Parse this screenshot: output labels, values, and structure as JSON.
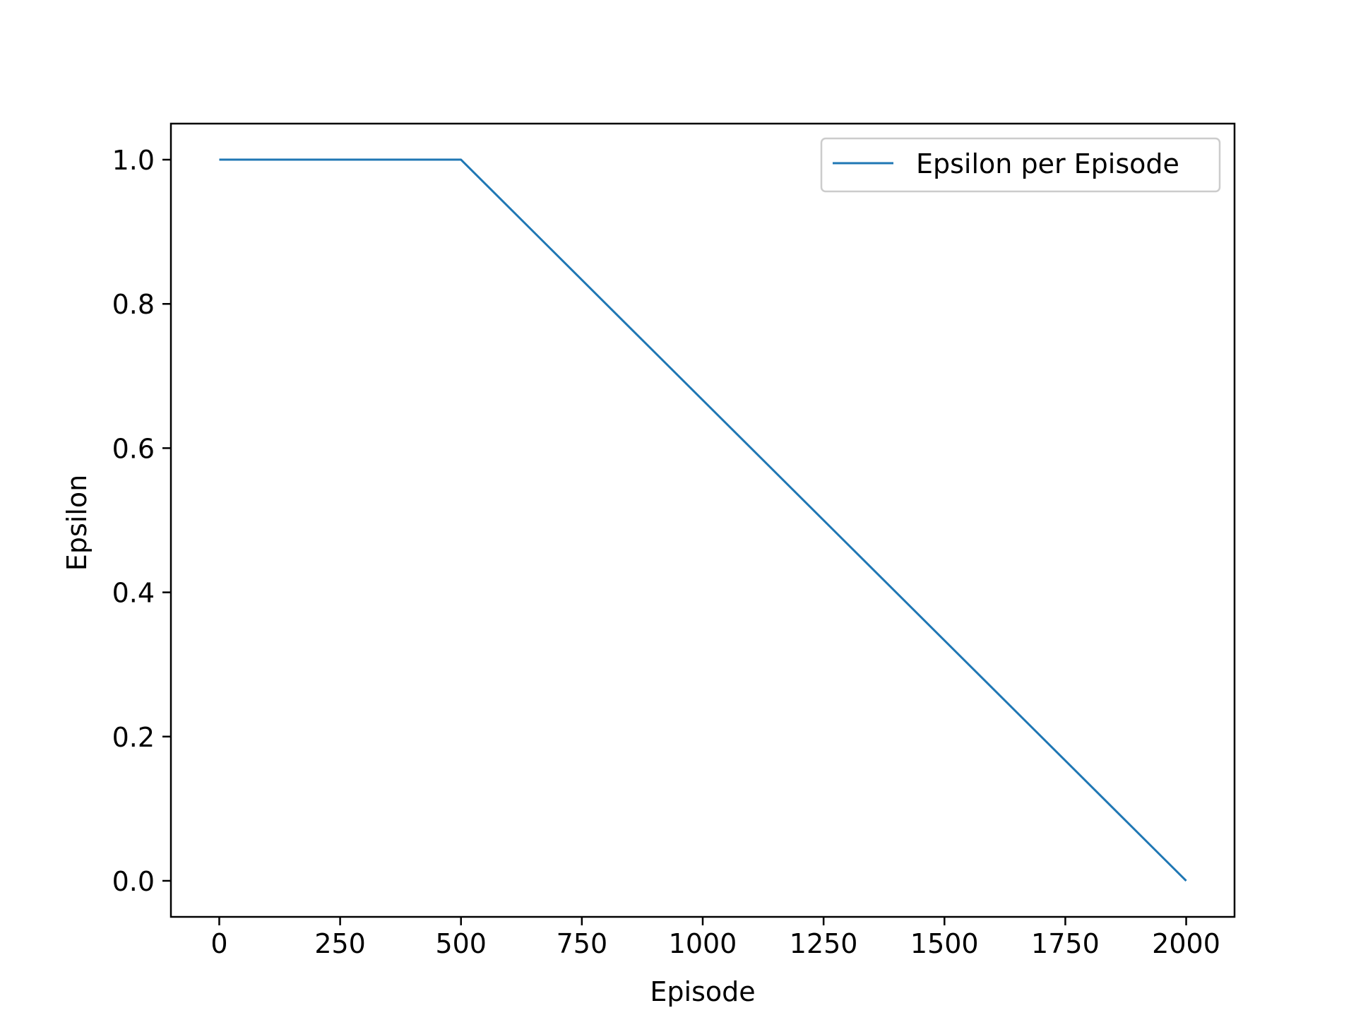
{
  "chart_data": {
    "type": "line",
    "title": "",
    "xlabel": "Episode",
    "ylabel": "Epsilon",
    "xlim": [
      -100,
      2100
    ],
    "ylim": [
      -0.05,
      1.05
    ],
    "xticks": [
      0,
      250,
      500,
      750,
      1000,
      1250,
      1500,
      1750,
      2000
    ],
    "xtick_labels": [
      "0",
      "250",
      "500",
      "750",
      "1000",
      "1250",
      "1500",
      "1750",
      "2000"
    ],
    "yticks": [
      0.0,
      0.2,
      0.4,
      0.6,
      0.8,
      1.0
    ],
    "ytick_labels": [
      "0.0",
      "0.2",
      "0.4",
      "0.6",
      "0.8",
      "1.0"
    ],
    "grid": false,
    "legend_position": "upper right",
    "series": [
      {
        "name": "Epsilon per Episode",
        "color": "#1f77b4",
        "x": [
          0,
          500,
          2000
        ],
        "y": [
          1.0,
          1.0,
          0.0
        ]
      }
    ]
  }
}
